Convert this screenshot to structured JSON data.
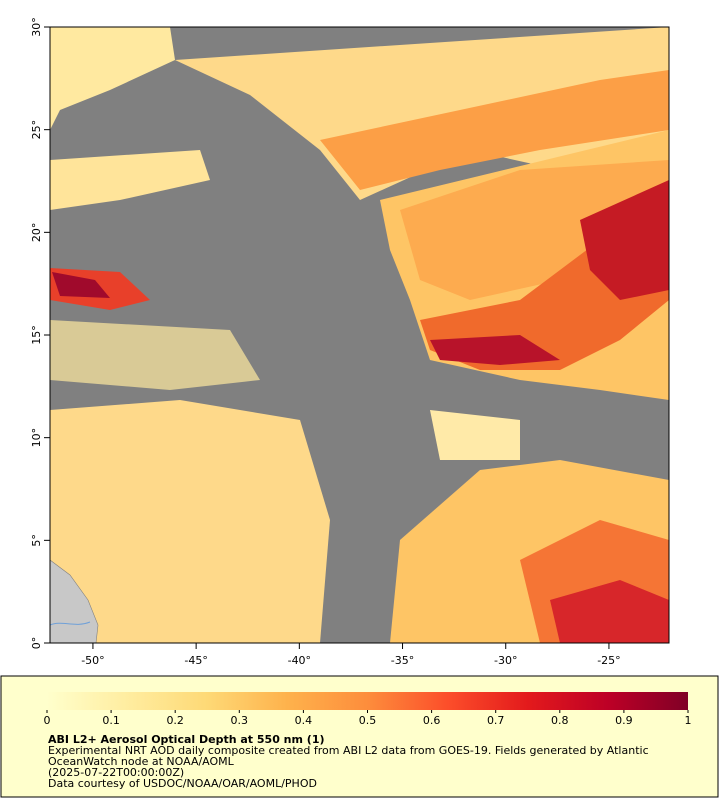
{
  "map": {
    "xlim": [
      -52.08,
      -22.09
    ],
    "ylim": [
      0,
      30
    ],
    "xticks": [
      {
        "value": -50,
        "label": "-50°"
      },
      {
        "value": -45,
        "label": "-45°"
      },
      {
        "value": -40,
        "label": "-40°"
      },
      {
        "value": -35,
        "label": "-35°"
      },
      {
        "value": -30,
        "label": "-30°"
      },
      {
        "value": -25,
        "label": "-25°"
      }
    ],
    "yticks": [
      {
        "value": 0,
        "label": "0°"
      },
      {
        "value": 5,
        "label": "5°"
      },
      {
        "value": 10,
        "label": "10°"
      },
      {
        "value": 15,
        "label": "15°"
      },
      {
        "value": 20,
        "label": "20°"
      },
      {
        "value": 25,
        "label": "25°"
      },
      {
        "value": 30,
        "label": "30°"
      }
    ]
  },
  "colorbar": {
    "lim": [
      0,
      1
    ],
    "ticks": [
      0,
      0.1,
      0.2,
      0.3,
      0.4,
      0.5,
      0.6,
      0.7,
      0.8,
      0.9,
      1
    ],
    "colors": [
      "#ffffcc",
      "#ffeda0",
      "#fed976",
      "#feb24c",
      "#fd8d3c",
      "#fc4e2a",
      "#e31a1c",
      "#bd0026",
      "#800026"
    ]
  },
  "caption": {
    "title": "ABI L2+ Aerosol Optical Depth at 550 nm (1)",
    "lines": [
      "Experimental NRT AOD daily composite created from ABI L2 data from GOES-19. Fields generated by Atlantic",
      "OceanWatch node at NOAA/AOML",
      "(2025-07-22T00:00:00Z)",
      "Data courtesy of USDOC/NOAA/OAR/AOML/PHOD"
    ]
  }
}
